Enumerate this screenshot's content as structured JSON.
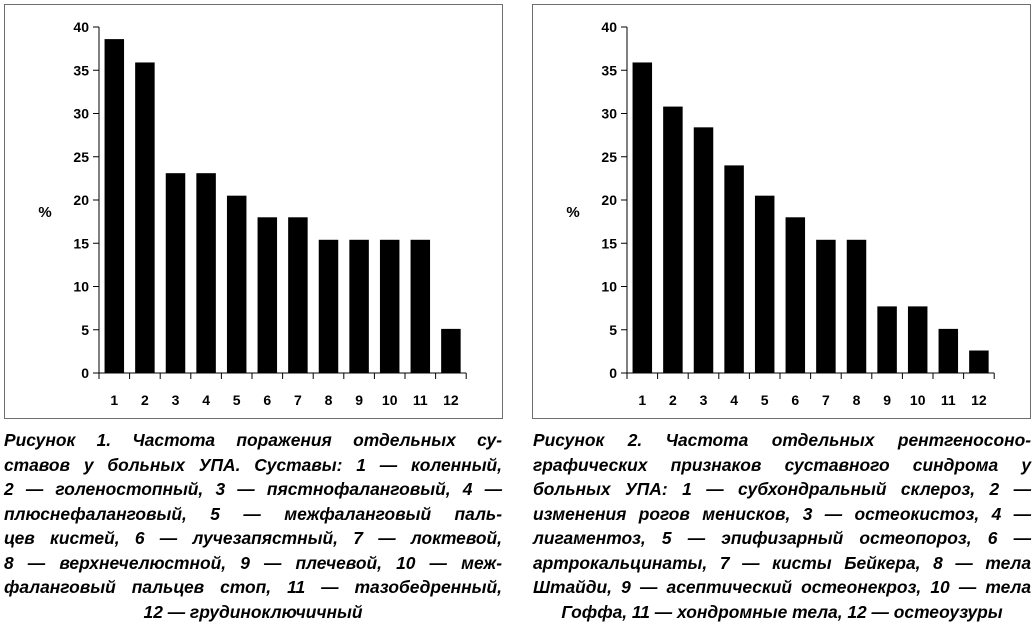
{
  "chart_data": [
    {
      "type": "bar",
      "categories": [
        "1",
        "2",
        "3",
        "4",
        "5",
        "6",
        "7",
        "8",
        "9",
        "10",
        "11",
        "12"
      ],
      "values": [
        38.6,
        35.9,
        23.1,
        23.1,
        20.5,
        18.0,
        18.0,
        15.4,
        15.4,
        15.4,
        15.4,
        5.1
      ],
      "ylabel": "%",
      "ylim": [
        0,
        40
      ],
      "yticks": [
        "0",
        "5",
        "10",
        "15",
        "20",
        "25",
        "30",
        "35",
        "40"
      ],
      "bar_color": "#000000",
      "grid": false
    },
    {
      "type": "bar",
      "categories": [
        "1",
        "2",
        "3",
        "4",
        "5",
        "6",
        "7",
        "8",
        "9",
        "10",
        "11",
        "12"
      ],
      "values": [
        35.9,
        30.8,
        28.4,
        24.0,
        20.5,
        18.0,
        15.4,
        15.4,
        7.7,
        7.7,
        5.1,
        2.6
      ],
      "ylabel": "%",
      "ylim": [
        0,
        40
      ],
      "yticks": [
        "0",
        "5",
        "10",
        "15",
        "20",
        "25",
        "30",
        "35",
        "40"
      ],
      "bar_color": "#000000",
      "grid": false
    }
  ],
  "captions": [
    {
      "lines": [
        "Рисунок 1. Частота поражения отдельных су-",
        "ставов у больных УПА. Суставы: 1 — коленный,",
        "2 — голеностопный, 3 — пястнофаланговый, 4 —",
        "плюснефаланговый, 5 — межфаланговый паль-",
        "цев кистей, 6 — лучезапястный, 7 — локтевой,",
        "8 — верхнечелюстной, 9 — плечевой, 10 — меж-",
        "фаланговый пальцев стоп, 11 — тазобедренный,",
        "12 — грудиноключичный"
      ]
    },
    {
      "lines": [
        "Рисунок 2. Частота отдельных рентгеносоно-",
        "графических признаков суставного синдрома у",
        "больных УПА: 1 — субхондральный склероз, 2 —",
        "изменения рогов менисков, 3 — остеокистоз, 4 —",
        "лигаментоз, 5 — эпифизарный остеопороз, 6 —",
        "артрокальцинаты, 7 — кисты Бейкера, 8 — тела",
        "Штайди, 9 — асептический остеонекроз, 10 — тела",
        "Гоффа, 11 — хондромные тела, 12 — остеоузуры"
      ]
    }
  ]
}
